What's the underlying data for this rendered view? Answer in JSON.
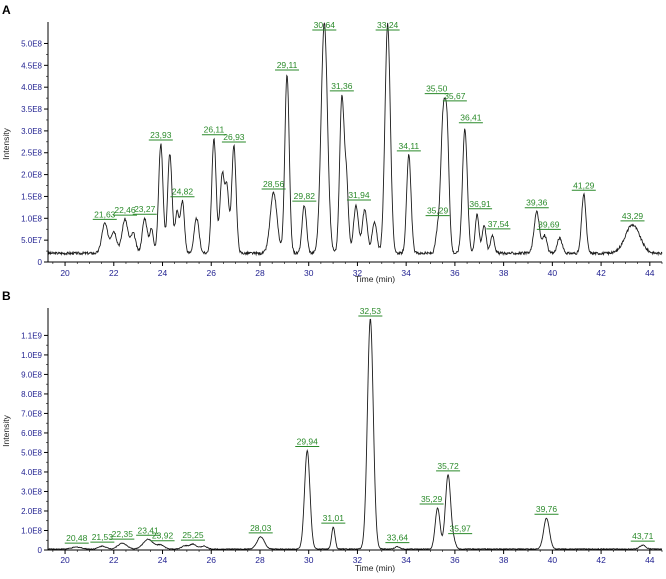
{
  "chart_data": [
    {
      "panel": "A",
      "type": "line",
      "xlabel": "Time (min)",
      "ylabel": "Intensity",
      "xlim": [
        19.3,
        44.5
      ],
      "ylim": [
        0,
        540000000.0
      ],
      "x_ticks": [
        20,
        22,
        24,
        26,
        28,
        30,
        32,
        34,
        36,
        38,
        40,
        42,
        44
      ],
      "y_ticks": [
        {
          "value": 0,
          "label": "0"
        },
        {
          "value": 50000000,
          "label": "5.0E7"
        },
        {
          "value": 100000000,
          "label": "1.0E8"
        },
        {
          "value": 150000000,
          "label": "1.5E8"
        },
        {
          "value": 200000000,
          "label": "2.0E8"
        },
        {
          "value": 250000000,
          "label": "2.5E8"
        },
        {
          "value": 300000000,
          "label": "3.0E8"
        },
        {
          "value": 350000000,
          "label": "3.5E8"
        },
        {
          "value": 400000000,
          "label": "4.0E8"
        },
        {
          "value": 450000000,
          "label": "4.5E8"
        },
        {
          "value": 500000000,
          "label": "5.0E8"
        }
      ],
      "baseline": 20000000,
      "peaks": [
        {
          "label": "21,63",
          "x": 21.63,
          "y": 68000000,
          "w": 0.12
        },
        {
          "x": 22.0,
          "y": 50000000,
          "w": 0.12
        },
        {
          "label": "22,46",
          "x": 22.46,
          "y": 78000000,
          "w": 0.12
        },
        {
          "x": 22.8,
          "y": 45000000,
          "w": 0.1
        },
        {
          "label": "23,27",
          "x": 23.27,
          "y": 80000000,
          "w": 0.1
        },
        {
          "x": 23.55,
          "y": 55000000,
          "w": 0.08
        },
        {
          "label": "23,93",
          "x": 23.93,
          "y": 250000000,
          "w": 0.09
        },
        {
          "x": 24.3,
          "y": 228000000,
          "w": 0.09
        },
        {
          "x": 24.6,
          "y": 95000000,
          "w": 0.08
        },
        {
          "label": "24,82",
          "x": 24.82,
          "y": 118000000,
          "w": 0.08
        },
        {
          "x": 25.4,
          "y": 80000000,
          "w": 0.1
        },
        {
          "label": "26,11",
          "x": 26.11,
          "y": 262000000,
          "w": 0.09
        },
        {
          "x": 26.45,
          "y": 180000000,
          "w": 0.09
        },
        {
          "x": 26.65,
          "y": 140000000,
          "w": 0.08
        },
        {
          "label": "26,93",
          "x": 26.93,
          "y": 245000000,
          "w": 0.09
        },
        {
          "label": "28,56",
          "x": 28.56,
          "y": 138000000,
          "w": 0.14
        },
        {
          "label": "29,11",
          "x": 29.11,
          "y": 410000000,
          "w": 0.09
        },
        {
          "label": "29,82",
          "x": 29.82,
          "y": 110000000,
          "w": 0.09
        },
        {
          "label": "30,64",
          "x": 30.64,
          "y": 528000000,
          "w": 0.13
        },
        {
          "label": "31,36",
          "x": 31.36,
          "y": 353000000,
          "w": 0.09
        },
        {
          "x": 31.55,
          "y": 160000000,
          "w": 0.08
        },
        {
          "label": "31,94",
          "x": 31.94,
          "y": 108000000,
          "w": 0.1
        },
        {
          "x": 32.3,
          "y": 100000000,
          "w": 0.1
        },
        {
          "x": 32.7,
          "y": 70000000,
          "w": 0.1
        },
        {
          "label": "33,24",
          "x": 33.24,
          "y": 525000000,
          "w": 0.11
        },
        {
          "label": "34,11",
          "x": 34.11,
          "y": 225000000,
          "w": 0.09
        },
        {
          "label": "35,29",
          "x": 35.29,
          "y": 50000000,
          "w": 0.08
        },
        {
          "label": "35,50",
          "x": 35.5,
          "y": 270000000,
          "w": 0.09
        },
        {
          "label": "35,67",
          "x": 35.67,
          "y": 285000000,
          "w": 0.09
        },
        {
          "label": "36,41",
          "x": 36.41,
          "y": 285000000,
          "w": 0.1
        },
        {
          "label": "36,91",
          "x": 36.91,
          "y": 88000000,
          "w": 0.08
        },
        {
          "x": 37.2,
          "y": 65000000,
          "w": 0.08
        },
        {
          "label": "37,54",
          "x": 37.54,
          "y": 42000000,
          "w": 0.08
        },
        {
          "label": "39,36",
          "x": 39.36,
          "y": 95000000,
          "w": 0.11
        },
        {
          "label": "39,69",
          "x": 39.69,
          "y": 40000000,
          "w": 0.09
        },
        {
          "x": 40.3,
          "y": 35000000,
          "w": 0.1
        },
        {
          "label": "41,29",
          "x": 41.29,
          "y": 135000000,
          "w": 0.09
        },
        {
          "label": "43,29",
          "x": 43.29,
          "y": 65000000,
          "w": 0.3
        }
      ]
    },
    {
      "panel": "B",
      "type": "line",
      "xlabel": "Time (min)",
      "ylabel": "Intensity",
      "xlim": [
        19.3,
        44.5
      ],
      "ylim": [
        0,
        1220000000.0
      ],
      "x_ticks": [
        20,
        22,
        24,
        26,
        28,
        30,
        32,
        34,
        36,
        38,
        40,
        42,
        44
      ],
      "y_ticks": [
        {
          "value": 0,
          "label": "0"
        },
        {
          "value": 100000000,
          "label": "1.0E8"
        },
        {
          "value": 200000000,
          "label": "2.0E8"
        },
        {
          "value": 300000000,
          "label": "3.0E8"
        },
        {
          "value": 400000000,
          "label": "4.0E8"
        },
        {
          "value": 500000000,
          "label": "5.0E8"
        },
        {
          "value": 600000000,
          "label": "6.0E8"
        },
        {
          "value": 700000000,
          "label": "7.0E8"
        },
        {
          "value": 800000000,
          "label": "8.0E8"
        },
        {
          "value": 900000000,
          "label": "9.0E8"
        },
        {
          "value": 1000000000,
          "label": "1.0E9"
        },
        {
          "value": 1100000000,
          "label": "1.1E9"
        }
      ],
      "baseline": 5000000,
      "peaks": [
        {
          "label": "20,48",
          "x": 20.48,
          "y": 10000000,
          "w": 0.2
        },
        {
          "label": "21,53",
          "x": 21.53,
          "y": 15000000,
          "w": 0.15
        },
        {
          "label": "22,35",
          "x": 22.35,
          "y": 30000000,
          "w": 0.18
        },
        {
          "label": "23,41",
          "x": 23.41,
          "y": 50000000,
          "w": 0.2
        },
        {
          "label": "23,92",
          "x": 23.92,
          "y": 20000000,
          "w": 0.15
        },
        {
          "x": 24.9,
          "y": 15000000,
          "w": 0.12
        },
        {
          "label": "25,25",
          "x": 25.25,
          "y": 25000000,
          "w": 0.15
        },
        {
          "x": 25.7,
          "y": 15000000,
          "w": 0.12
        },
        {
          "label": "28,03",
          "x": 28.03,
          "y": 62000000,
          "w": 0.15
        },
        {
          "label": "29,94",
          "x": 29.94,
          "y": 505000000,
          "w": 0.11
        },
        {
          "label": "31,01",
          "x": 31.01,
          "y": 112000000,
          "w": 0.07
        },
        {
          "label": "32,53",
          "x": 32.53,
          "y": 1180000000,
          "w": 0.12
        },
        {
          "label": "33,64",
          "x": 33.64,
          "y": 12000000,
          "w": 0.1
        },
        {
          "label": "35,29",
          "x": 35.29,
          "y": 210000000,
          "w": 0.1
        },
        {
          "label": "35,72",
          "x": 35.72,
          "y": 380000000,
          "w": 0.11
        },
        {
          "label": "35,97",
          "x": 35.97,
          "y": 30000000,
          "w": 0.08
        },
        {
          "label": "39,76",
          "x": 39.76,
          "y": 158000000,
          "w": 0.12
        },
        {
          "label": "43,71",
          "x": 43.71,
          "y": 20000000,
          "w": 0.12
        }
      ]
    }
  ]
}
